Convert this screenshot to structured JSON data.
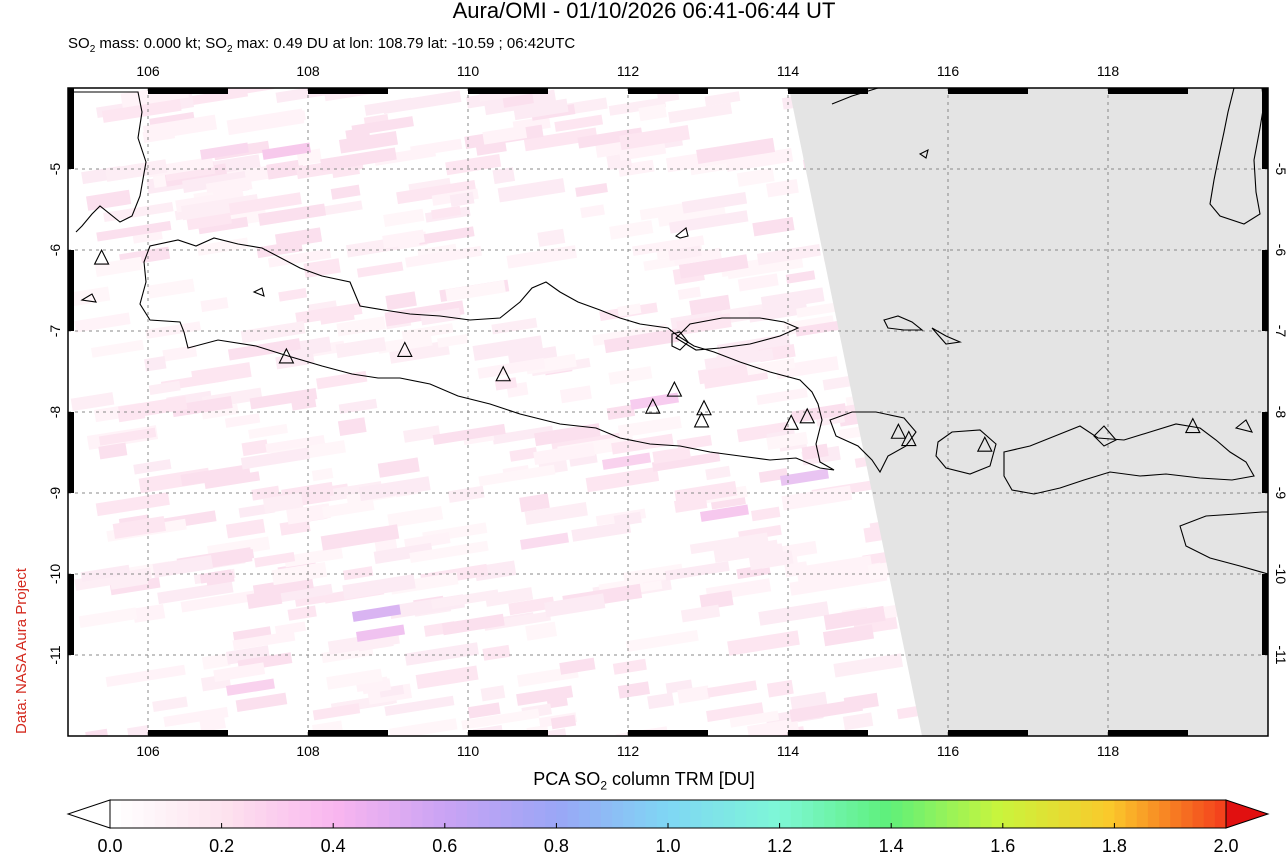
{
  "title": "Aura/OMI - 01/10/2026 06:41-06:44 UT",
  "subtitle": {
    "prefix": "SO",
    "sub": "2",
    "mid": " mass: 0.000 kt; SO",
    "sub2": "2",
    "rest": " max: 0.49 DU at lon: 108.79 lat: -10.59 ; 06:42UTC"
  },
  "credit": "Data: NASA Aura Project",
  "colorbar": {
    "title_prefix": "PCA SO",
    "title_sub": "2",
    "title_rest": " column TRM [DU]",
    "ticks": [
      "0.0",
      "0.2",
      "0.4",
      "0.6",
      "0.8",
      "1.0",
      "1.2",
      "1.4",
      "1.6",
      "1.8",
      "2.0"
    ],
    "colors": [
      "#ffffff",
      "#fde2ee",
      "#f9b5ef",
      "#c9a3f4",
      "#9aa6f6",
      "#7fd6f4",
      "#7ef7d7",
      "#5ef07a",
      "#c9f53c",
      "#fbc92b",
      "#f4431c",
      "#e11010"
    ]
  },
  "map": {
    "lon_ticks": [
      "106",
      "108",
      "110",
      "112",
      "114",
      "116",
      "118"
    ],
    "lat_ticks": [
      "-5",
      "-6",
      "-7",
      "-8",
      "-9",
      "-10",
      "-11"
    ],
    "lon_min": 105,
    "lon_max": 120,
    "lat_max": -4,
    "lat_min": -12,
    "volcano_icon": "triangle-icon",
    "volcanoes": [
      {
        "lon": 105.42,
        "lat": -6.1
      },
      {
        "lon": 107.73,
        "lat": -7.32
      },
      {
        "lon": 109.21,
        "lat": -7.24
      },
      {
        "lon": 110.44,
        "lat": -7.54
      },
      {
        "lon": 112.31,
        "lat": -7.94
      },
      {
        "lon": 112.58,
        "lat": -7.73
      },
      {
        "lon": 112.95,
        "lat": -7.96
      },
      {
        "lon": 112.92,
        "lat": -8.11
      },
      {
        "lon": 114.04,
        "lat": -8.14
      },
      {
        "lon": 114.24,
        "lat": -8.06
      },
      {
        "lon": 115.38,
        "lat": -8.25
      },
      {
        "lon": 115.51,
        "lat": -8.34
      },
      {
        "lon": 116.46,
        "lat": -8.41
      },
      {
        "lon": 119.06,
        "lat": -8.18
      }
    ]
  }
}
